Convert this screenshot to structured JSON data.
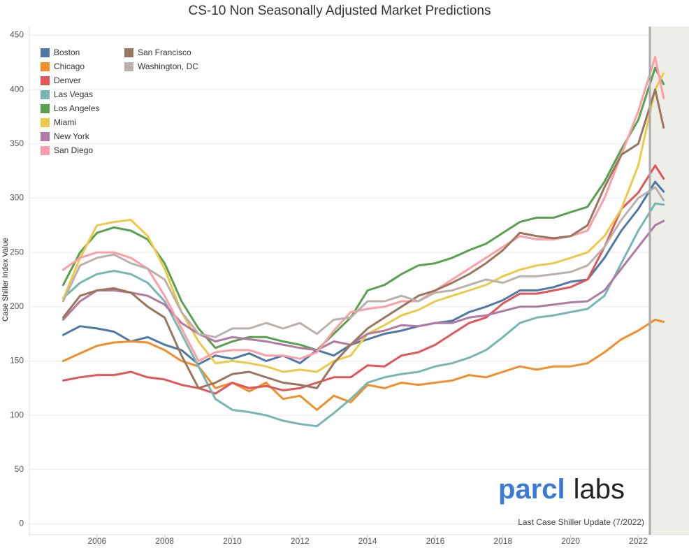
{
  "chart_data": {
    "type": "line",
    "title": "CS-10 Non Seasonally Adjusted Market Predictions",
    "y_label": "Case Shiller Index Value",
    "annotation": "Last Case Shiller Update (7/2022)",
    "watermark": [
      "parcl",
      "labs"
    ],
    "xlim": [
      2004,
      2023.5
    ],
    "ylim": [
      -10,
      458
    ],
    "xticks": [
      2006,
      2008,
      2010,
      2012,
      2014,
      2016,
      2018,
      2020,
      2022
    ],
    "yticks": [
      0,
      50,
      100,
      150,
      200,
      250,
      300,
      350,
      400,
      450
    ],
    "grid": true,
    "legend": "top-left",
    "x": [
      2005,
      2005.5,
      2006,
      2006.5,
      2007,
      2007.5,
      2008,
      2008.5,
      2009,
      2009.5,
      2010,
      2010.5,
      2011,
      2011.5,
      2012,
      2012.5,
      2013,
      2013.5,
      2014,
      2014.5,
      2015,
      2015.5,
      2016,
      2016.5,
      2017,
      2017.5,
      2018,
      2018.5,
      2019,
      2019.5,
      2020,
      2020.5,
      2021,
      2021.5,
      2022,
      2022.5,
      2022.75
    ],
    "series": [
      {
        "name": "Boston",
        "color": "#4e79a7",
        "values": [
          174,
          182,
          180,
          177,
          168,
          172,
          165,
          160,
          147,
          155,
          152,
          157,
          150,
          155,
          148,
          160,
          155,
          165,
          170,
          175,
          178,
          182,
          185,
          187,
          195,
          200,
          206,
          215,
          215,
          218,
          223,
          225,
          245,
          270,
          290,
          315,
          306
        ]
      },
      {
        "name": "Chicago",
        "color": "#f28e2b",
        "values": [
          150,
          157,
          164,
          167,
          168,
          167,
          160,
          150,
          145,
          125,
          130,
          122,
          130,
          115,
          118,
          105,
          118,
          112,
          128,
          125,
          130,
          128,
          130,
          132,
          137,
          135,
          140,
          145,
          142,
          145,
          145,
          148,
          158,
          170,
          178,
          188,
          186
        ]
      },
      {
        "name": "Denver",
        "color": "#e15759",
        "values": [
          132,
          135,
          137,
          137,
          140,
          135,
          133,
          128,
          125,
          120,
          130,
          125,
          127,
          123,
          125,
          130,
          135,
          135,
          146,
          145,
          155,
          158,
          165,
          175,
          185,
          190,
          203,
          212,
          212,
          215,
          218,
          225,
          255,
          290,
          305,
          330,
          318
        ]
      },
      {
        "name": "Las Vegas",
        "color": "#76b7b2",
        "values": [
          208,
          222,
          230,
          233,
          230,
          222,
          205,
          175,
          145,
          115,
          105,
          103,
          100,
          95,
          92,
          90,
          102,
          115,
          130,
          135,
          138,
          140,
          145,
          148,
          153,
          160,
          172,
          185,
          190,
          192,
          195,
          198,
          210,
          240,
          270,
          295,
          294
        ]
      },
      {
        "name": "Los Angeles",
        "color": "#59a14f",
        "values": [
          220,
          250,
          268,
          273,
          270,
          262,
          240,
          205,
          180,
          162,
          168,
          172,
          172,
          168,
          165,
          160,
          175,
          190,
          215,
          220,
          230,
          238,
          240,
          245,
          252,
          258,
          268,
          278,
          282,
          282,
          287,
          292,
          315,
          345,
          372,
          420,
          405
        ]
      },
      {
        "name": "Miami",
        "color": "#edc948",
        "values": [
          207,
          245,
          275,
          278,
          280,
          265,
          235,
          195,
          168,
          148,
          150,
          148,
          145,
          140,
          142,
          140,
          150,
          155,
          175,
          183,
          192,
          197,
          205,
          210,
          215,
          220,
          228,
          234,
          238,
          240,
          245,
          250,
          265,
          290,
          330,
          400,
          415
        ]
      },
      {
        "name": "New York",
        "color": "#b07aa1",
        "values": [
          188,
          205,
          215,
          215,
          213,
          210,
          202,
          185,
          175,
          168,
          172,
          170,
          168,
          165,
          162,
          160,
          168,
          165,
          175,
          178,
          183,
          182,
          185,
          185,
          190,
          192,
          196,
          200,
          200,
          202,
          204,
          205,
          215,
          235,
          255,
          275,
          279
        ]
      },
      {
        "name": "San Diego",
        "color": "#ff9da7",
        "values": [
          234,
          245,
          250,
          250,
          245,
          235,
          210,
          180,
          150,
          158,
          160,
          160,
          155,
          155,
          152,
          158,
          178,
          195,
          198,
          200,
          205,
          205,
          215,
          225,
          235,
          245,
          255,
          265,
          262,
          262,
          265,
          270,
          300,
          340,
          380,
          430,
          392
        ]
      },
      {
        "name": "San Francisco",
        "color": "#9c755f",
        "values": [
          190,
          210,
          215,
          217,
          213,
          200,
          190,
          155,
          125,
          130,
          138,
          140,
          135,
          130,
          128,
          125,
          148,
          165,
          180,
          190,
          200,
          210,
          215,
          222,
          230,
          240,
          252,
          268,
          265,
          263,
          265,
          275,
          310,
          340,
          350,
          400,
          365
        ]
      },
      {
        "name": "Washington, DC",
        "color": "#bab0ac",
        "values": [
          205,
          238,
          245,
          248,
          240,
          235,
          225,
          195,
          175,
          172,
          180,
          180,
          185,
          180,
          185,
          175,
          188,
          190,
          205,
          205,
          210,
          205,
          213,
          215,
          220,
          225,
          222,
          228,
          228,
          230,
          232,
          238,
          255,
          280,
          300,
          310,
          298
        ]
      }
    ]
  }
}
